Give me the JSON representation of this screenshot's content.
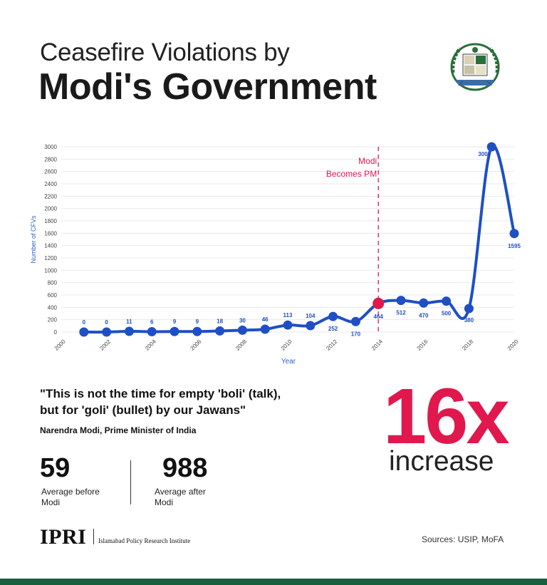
{
  "header": {
    "title_line1": "Ceasefire Violations by",
    "title_line2": "Modi's Government"
  },
  "chart_data": {
    "type": "line",
    "xlabel": "Year",
    "ylabel": "Number of CFVs",
    "xlim": [
      2000,
      2020
    ],
    "ylim": [
      0,
      3000
    ],
    "x_ticks": [
      "2000",
      "2002",
      "2004",
      "2006",
      "2008",
      "2010",
      "2012",
      "2014",
      "2016",
      "2018",
      "2020"
    ],
    "y_ticks": [
      "0",
      "200",
      "400",
      "600",
      "800",
      "1000",
      "1200",
      "1400",
      "1600",
      "1800",
      "2000",
      "2200",
      "2400",
      "2600",
      "2800",
      "3000"
    ],
    "series": [
      {
        "x": [
          2001,
          2002,
          2003,
          2004,
          2005,
          2006,
          2007,
          2008,
          2009,
          2010,
          2011,
          2012,
          2013,
          2014,
          2015,
          2016,
          2017,
          2018,
          2019,
          2020
        ],
        "values": [
          0,
          0,
          11,
          6,
          9,
          9,
          18,
          30,
          46,
          113,
          104,
          252,
          170,
          464,
          512,
          470,
          500,
          380,
          3000,
          1595
        ],
        "labels": [
          "0",
          "0",
          "11",
          "6",
          "9",
          "9",
          "18",
          "30",
          "46",
          "113",
          "104",
          "252",
          "170",
          "464",
          "512",
          "470",
          "500",
          "380",
          "3000",
          "1595"
        ]
      }
    ],
    "annotation": {
      "x": 2014,
      "line1": "Modi",
      "line2": "Becomes PM"
    },
    "grid": true,
    "colors": {
      "line": "#1f4fc4",
      "highlight": "#e0184d",
      "annotation": "#e0184d"
    }
  },
  "quote": {
    "line1": "\"This is not the time for empty 'boli' (talk),",
    "line2": "but for 'goli' (bullet) by our Jawans\"",
    "attribution": "Narendra Modi, Prime Minister of India"
  },
  "stats": {
    "before_value": "59",
    "before_label": "Average before Modi",
    "after_value": "988",
    "after_label": "Average after Modi",
    "multiplier": "16x",
    "multiplier_label": "increase"
  },
  "footer": {
    "org_short": "IPRI",
    "org_full": "Islamabad Policy Research Institute",
    "sources": "Sources: USIP, MoFA"
  },
  "colors": {
    "accent": "#e0184d",
    "footer_bar": "#1b5e3f"
  }
}
